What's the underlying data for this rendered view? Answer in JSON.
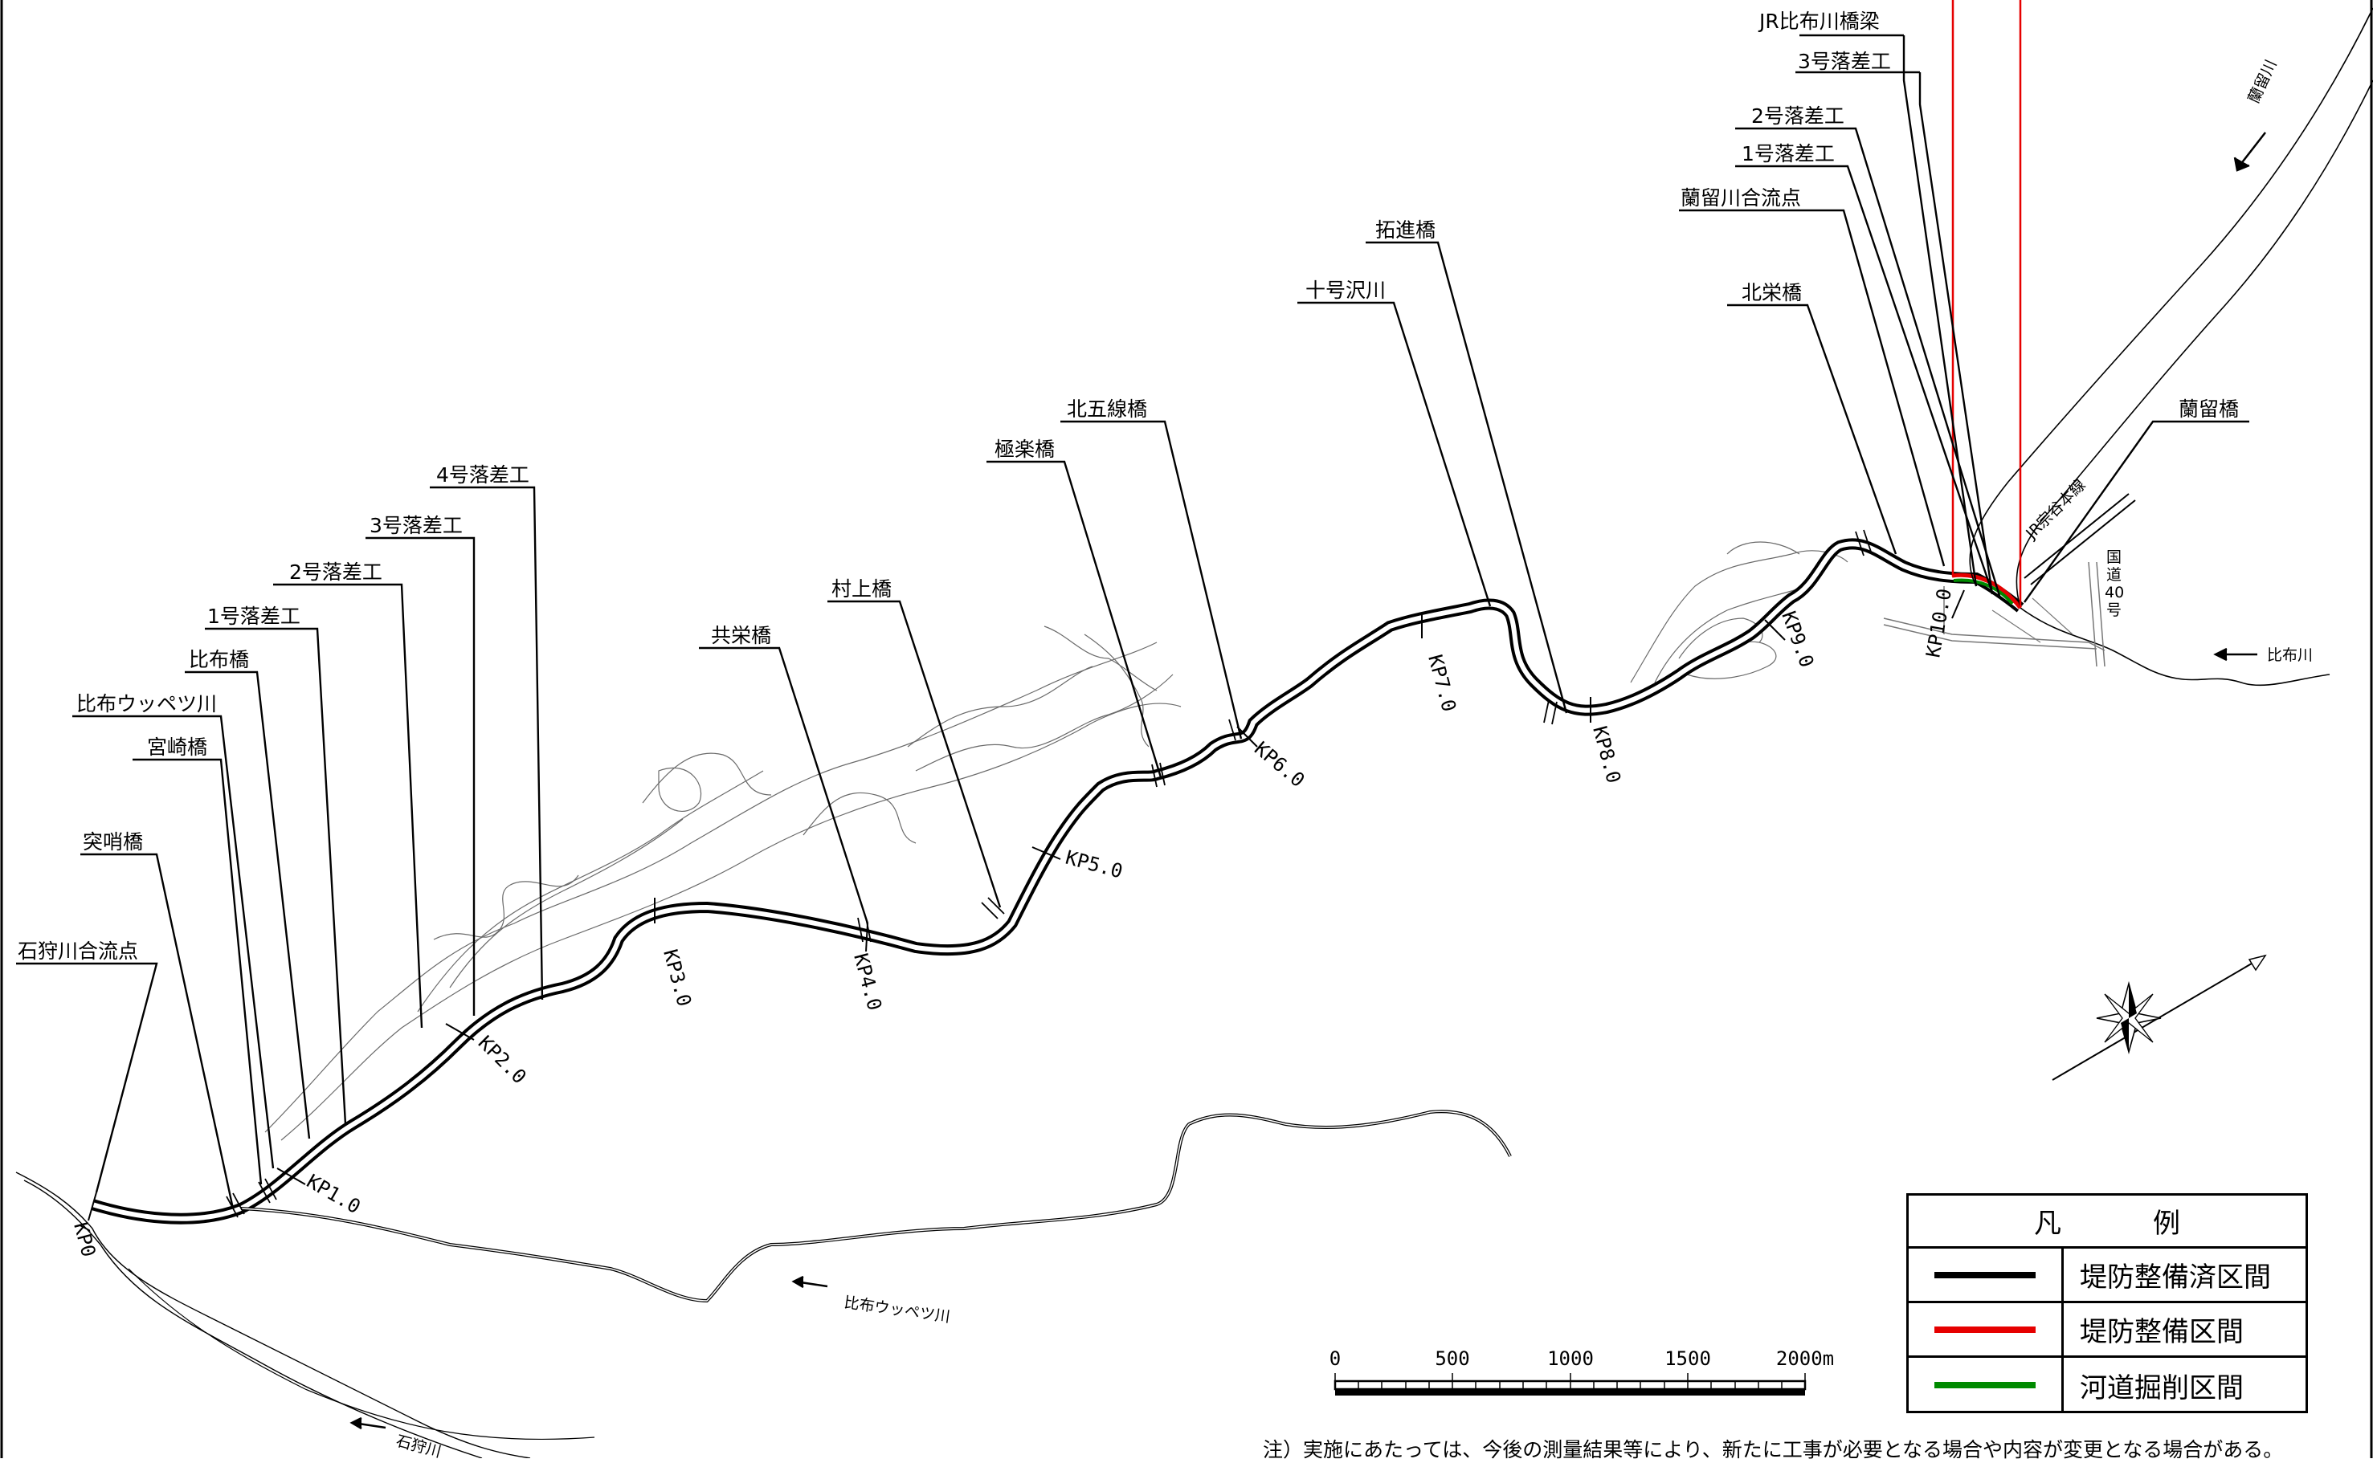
{
  "labels": {
    "jr_hifu_bridge": "JR比布川橋梁",
    "drop3_upper": "3号落差工",
    "drop2_upper": "2号落差工",
    "drop1_upper": "1号落差工",
    "ranru_confluence": "蘭留川合流点",
    "hokuei_bridge": "北栄橋",
    "ranru_bridge": "蘭留橋",
    "takushin_bridge": "拓進橋",
    "jugousawa": "十号沢川",
    "kitagosen_bridge": "北五線橋",
    "gokuraku_bridge": "極楽橋",
    "murakami_bridge": "村上橋",
    "kyoei_bridge": "共栄橋",
    "drop4_lower": "4号落差工",
    "drop3_lower": "3号落差工",
    "drop2_lower": "2号落差工",
    "drop1_lower": "1号落差工",
    "hifu_bridge": "比布橋",
    "hifu_uppetsu": "比布ウッペツ川",
    "miyazaki_bridge": "宮崎橋",
    "tosaki_bridge": "突哨橋",
    "ishikari_confluence": "石狩川合流点"
  },
  "kp": [
    "KP0",
    "KP1.0",
    "KP2.0",
    "KP3.0",
    "KP4.0",
    "KP5.0",
    "KP6.0",
    "KP7.0",
    "KP8.0",
    "KP9.0",
    "KP10.0"
  ],
  "rivers": {
    "ranru": "蘭留川",
    "hifu": "比布川",
    "hifu_uppetsu": "比布ウッペツ川",
    "ishikari": "石狩川"
  },
  "railway": "JR宗谷本線",
  "route40": [
    "国",
    "道",
    "40",
    "号"
  ],
  "scale": {
    "ticks": [
      "0",
      "500",
      "1000",
      "1500",
      "2000m"
    ]
  },
  "legend": {
    "title": "凡　例",
    "items": [
      {
        "label": "堤防整備済区間",
        "color": "#000000"
      },
      {
        "label": "堤防整備区間",
        "color": "#e60000"
      },
      {
        "label": "河道掘削区間",
        "color": "#008a00"
      }
    ]
  },
  "note": "注）実施にあたっては、今後の測量結果等により、新たに工事が必要となる場合や内容が変更となる場合がある。"
}
